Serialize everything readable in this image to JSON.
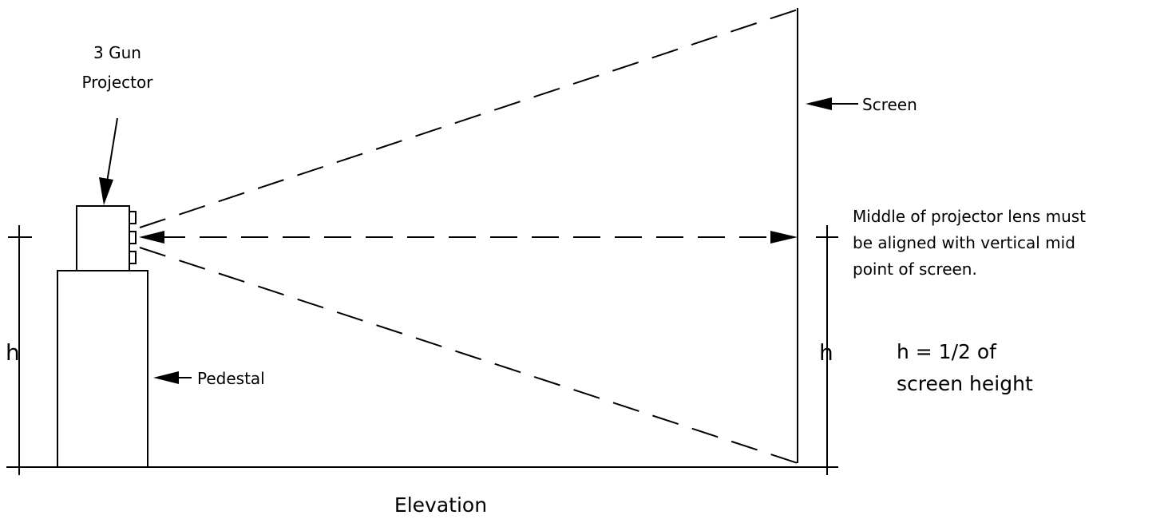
{
  "labels": {
    "projector_line1": "3 Gun",
    "projector_line2": "Projector",
    "screen": "Screen",
    "pedestal": "Pedestal",
    "note_line1": "Middle of projector lens must",
    "note_line2": "be aligned with vertical mid",
    "note_line3": "point of screen.",
    "h_left": "h",
    "h_right": "h",
    "formula_line1": "h = 1/2 of",
    "formula_line2": "screen height",
    "caption": "Elevation"
  },
  "colors": {
    "ink": "#000000",
    "background": "#ffffff"
  }
}
